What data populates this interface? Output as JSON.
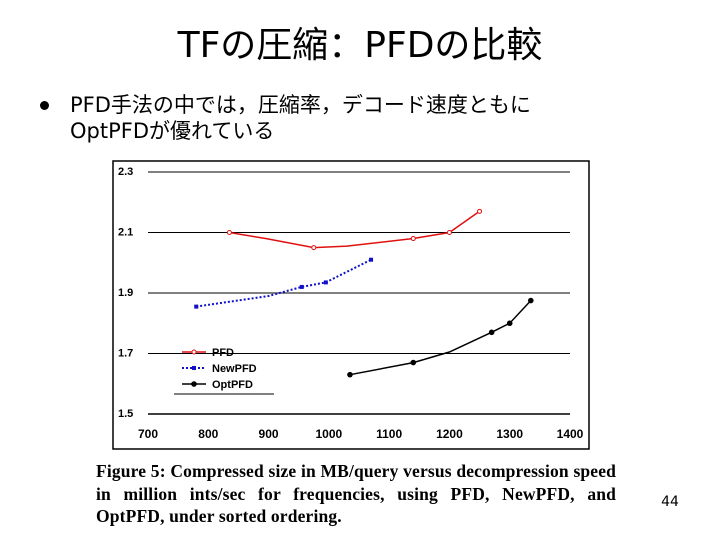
{
  "slide": {
    "title": "TFの圧縮：PFDの比較",
    "bullet_line1": "PFD手法の中では，圧縮率，デコード速度ともに",
    "bullet_line2": "OptPFDが優れている",
    "caption": "Figure 5: Compressed size in MB/query versus decompression speed in million ints/sec for frequencies, using PFD, NewPFD, and OptPFD, under sorted ordering.",
    "page_number": "44"
  },
  "chart_data": {
    "type": "line",
    "title": "",
    "xlabel": "",
    "ylabel": "",
    "xlim": [
      700,
      1400
    ],
    "ylim": [
      1.5,
      2.3
    ],
    "x_ticks": [
      700,
      800,
      900,
      1000,
      1100,
      1200,
      1300,
      1400
    ],
    "x_tick_labels": [
      "700",
      "800",
      "900",
      "1000",
      "1100",
      "1200",
      "1300",
      "1400"
    ],
    "y_ticks": [
      1.5,
      1.7,
      1.9,
      2.1,
      2.3
    ],
    "y_tick_labels": [
      "1.5",
      "1.7",
      "1.9",
      "2.1",
      "2.3"
    ],
    "legend_position": "bottom-left",
    "series": [
      {
        "name": "PFD",
        "color": "#e01010",
        "dash": "solid",
        "marker": "open-circle",
        "points": [
          [
            835,
            2.1
          ],
          [
            895,
            2.08
          ],
          [
            975,
            2.05
          ],
          [
            1030,
            2.055
          ],
          [
            1140,
            2.08
          ],
          [
            1200,
            2.1
          ],
          [
            1250,
            2.17
          ]
        ],
        "marker_points": [
          [
            835,
            2.1
          ],
          [
            975,
            2.05
          ],
          [
            1140,
            2.08
          ],
          [
            1200,
            2.1
          ],
          [
            1250,
            2.17
          ]
        ]
      },
      {
        "name": "NewPFD",
        "color": "#1010cc",
        "dash": "dotted",
        "marker": "square",
        "points": [
          [
            780,
            1.855
          ],
          [
            900,
            1.89
          ],
          [
            955,
            1.92
          ],
          [
            995,
            1.935
          ],
          [
            1020,
            1.96
          ],
          [
            1070,
            2.01
          ]
        ],
        "marker_points": [
          [
            780,
            1.855
          ],
          [
            955,
            1.92
          ],
          [
            995,
            1.935
          ],
          [
            1070,
            2.01
          ]
        ]
      },
      {
        "name": "OptPFD",
        "color": "#000000",
        "dash": "solid",
        "marker": "filled-circle",
        "points": [
          [
            1035,
            1.63
          ],
          [
            1140,
            1.67
          ],
          [
            1200,
            1.705
          ],
          [
            1270,
            1.77
          ],
          [
            1300,
            1.8
          ],
          [
            1335,
            1.875
          ]
        ],
        "marker_points": [
          [
            1035,
            1.63
          ],
          [
            1140,
            1.67
          ],
          [
            1270,
            1.77
          ],
          [
            1300,
            1.8
          ],
          [
            1335,
            1.875
          ]
        ]
      }
    ]
  }
}
